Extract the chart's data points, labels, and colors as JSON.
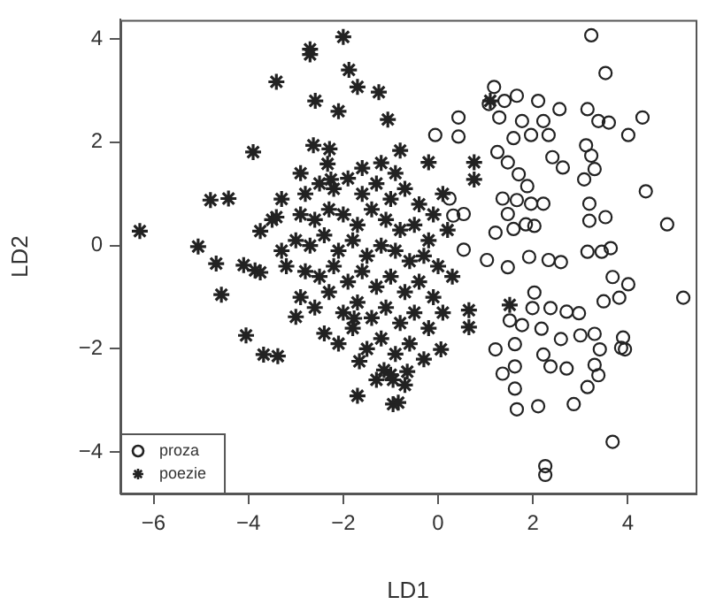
{
  "chart_data": {
    "type": "scatter",
    "xlabel": "LD1",
    "ylabel": "LD2",
    "xlim": [
      -6.7,
      5.43
    ],
    "ylim": [
      -4.8,
      4.37
    ],
    "xticks": [
      -6,
      -4,
      -2,
      0,
      2,
      4
    ],
    "yticks": [
      -4,
      -2,
      0,
      2,
      4
    ],
    "grid": false,
    "legend": "bottom left",
    "series": [
      {
        "name": "proza",
        "color": "#222222",
        "marker": "circle",
        "x": [
          3.23,
          3.53,
          1.18,
          1.66,
          1.07,
          1.4,
          2.11,
          2.56,
          3.15,
          3.38,
          3.6,
          4.31,
          0.43,
          0.43,
          -0.06,
          1.29,
          1.77,
          2.22,
          2.33,
          4.01,
          1.59,
          1.96,
          3.12,
          3.23,
          3.3,
          2.41,
          2.63,
          1.25,
          1.47,
          1.7,
          1.88,
          3.08,
          4.38,
          4.83,
          3.19,
          3.19,
          3.53,
          1.36,
          1.66,
          1.96,
          2.22,
          0.32,
          0.54,
          0.24,
          1.21,
          1.59,
          1.85,
          2.03,
          1.92,
          2.33,
          2.59,
          3.15,
          3.45,
          3.64,
          3.68,
          4.01,
          3.82,
          3.49,
          5.17,
          2.03,
          1.99,
          2.37,
          2.71,
          2.97,
          1.51,
          1.77,
          2.18,
          2.59,
          3.0,
          3.3,
          3.41,
          3.9,
          3.86,
          2.22,
          2.37,
          2.71,
          3.3,
          3.38,
          3.94,
          1.21,
          1.62,
          1.62,
          1.36,
          1.62,
          2.11,
          2.86,
          3.15,
          1.66,
          3.68,
          2.26,
          2.26,
          1.47,
          1.47,
          0.54,
          1.03
        ],
        "values": [
          4.07,
          3.34,
          3.07,
          2.9,
          2.74,
          2.8,
          2.8,
          2.64,
          2.64,
          2.41,
          2.38,
          2.48,
          2.48,
          2.11,
          2.14,
          2.48,
          2.41,
          2.41,
          2.14,
          2.14,
          2.08,
          2.14,
          1.94,
          1.74,
          1.48,
          1.71,
          1.51,
          1.81,
          1.61,
          1.38,
          1.15,
          1.28,
          1.05,
          0.41,
          0.81,
          0.48,
          0.55,
          0.91,
          0.88,
          0.81,
          0.81,
          0.58,
          0.61,
          0.91,
          0.25,
          0.32,
          0.41,
          0.38,
          -0.22,
          -0.28,
          -0.32,
          -0.12,
          -0.12,
          -0.05,
          -0.61,
          -0.75,
          -1.01,
          -1.08,
          -1.01,
          -0.91,
          -1.21,
          -1.21,
          -1.28,
          -1.31,
          -1.45,
          -1.54,
          -1.61,
          -1.81,
          -1.74,
          -1.71,
          -2.01,
          -1.78,
          -1.98,
          -2.11,
          -2.34,
          -2.38,
          -2.31,
          -2.51,
          -2.01,
          -2.01,
          -1.91,
          -2.34,
          -2.48,
          -2.77,
          -3.11,
          -3.07,
          -2.74,
          -3.17,
          -3.8,
          -4.27,
          -4.44,
          -0.42,
          0.61,
          -0.08,
          -0.28
        ]
      },
      {
        "name": "poezie",
        "color": "#222222",
        "marker": "cross",
        "x": [
          -6.29,
          -2.0,
          -2.7,
          -2.7,
          -3.41,
          -1.88,
          -1.7,
          -1.25,
          -2.59,
          -2.1,
          -1.06,
          -3.9,
          -2.63,
          -2.29,
          -2.33,
          -0.8,
          -2.26,
          -4.8,
          -4.42,
          -3.41,
          -3.75,
          -5.06,
          -4.68,
          -4.1,
          -3.86,
          -3.75,
          -4.57,
          -4.05,
          -3.68,
          -3.38,
          -3.0,
          -1.77,
          -1.7,
          -0.95,
          -0.65,
          -1.66,
          -1.14,
          -0.95,
          -0.2,
          0.76,
          0.76,
          1.1,
          1.51,
          0.65,
          0.65,
          0.06,
          -0.84,
          -2.8,
          -2.5,
          -2.2,
          -1.9,
          -1.6,
          -1.3,
          -1.0,
          -0.7,
          -0.4,
          -0.1,
          -2.9,
          -2.6,
          -2.3,
          -2.0,
          -1.7,
          -1.4,
          -1.1,
          -0.8,
          -0.5,
          -0.2,
          0.2,
          -3.0,
          -2.7,
          -2.4,
          -2.1,
          -1.8,
          -1.5,
          -1.2,
          -0.9,
          -0.6,
          -0.3,
          0.0,
          -3.2,
          -2.8,
          -2.5,
          -2.2,
          -1.9,
          -1.6,
          -1.3,
          -1.0,
          -0.7,
          -0.4,
          -0.1,
          -2.9,
          -2.6,
          -2.3,
          -2.0,
          -1.7,
          -1.4,
          -1.1,
          -0.8,
          -0.5,
          -0.2,
          -2.4,
          -2.1,
          -1.8,
          -1.5,
          -1.2,
          -0.9,
          -0.6,
          -0.3,
          -1.3,
          -1.0,
          -0.7,
          -3.3,
          -3.5,
          -3.3,
          -2.9,
          -1.6,
          -1.2,
          -0.9,
          0.1,
          0.3,
          0.1
        ],
        "values": [
          0.28,
          4.04,
          3.8,
          3.7,
          3.17,
          3.4,
          3.07,
          2.97,
          2.8,
          2.6,
          2.44,
          1.81,
          1.94,
          1.87,
          1.58,
          1.84,
          1.28,
          0.88,
          0.91,
          0.55,
          0.28,
          -0.02,
          -0.35,
          -0.38,
          -0.48,
          -0.52,
          -0.95,
          -1.74,
          -2.11,
          -2.14,
          -1.38,
          -1.41,
          -2.91,
          -3.07,
          -2.44,
          -2.24,
          -2.41,
          -2.6,
          1.61,
          1.61,
          1.28,
          2.8,
          -1.15,
          -1.25,
          -1.58,
          -2.01,
          -3.04,
          1.0,
          1.2,
          1.1,
          1.3,
          1.0,
          1.2,
          0.9,
          1.1,
          0.8,
          0.6,
          0.6,
          0.5,
          0.7,
          0.6,
          0.4,
          0.7,
          0.5,
          0.3,
          0.4,
          0.1,
          0.3,
          0.1,
          0.0,
          0.2,
          -0.1,
          0.1,
          -0.2,
          0.0,
          -0.1,
          -0.3,
          -0.2,
          -0.4,
          -0.4,
          -0.5,
          -0.6,
          -0.4,
          -0.7,
          -0.5,
          -0.8,
          -0.6,
          -0.9,
          -0.7,
          -1.0,
          -1.0,
          -1.2,
          -0.9,
          -1.3,
          -1.1,
          -1.4,
          -1.2,
          -1.5,
          -1.3,
          -1.6,
          -1.7,
          -1.9,
          -1.6,
          -2.0,
          -1.8,
          -2.1,
          -1.9,
          -2.2,
          -2.6,
          -2.5,
          -2.7,
          0.9,
          0.5,
          -0.1,
          1.4,
          1.5,
          1.6,
          1.4,
          1.0,
          -0.6,
          -1.3
        ]
      }
    ]
  }
}
